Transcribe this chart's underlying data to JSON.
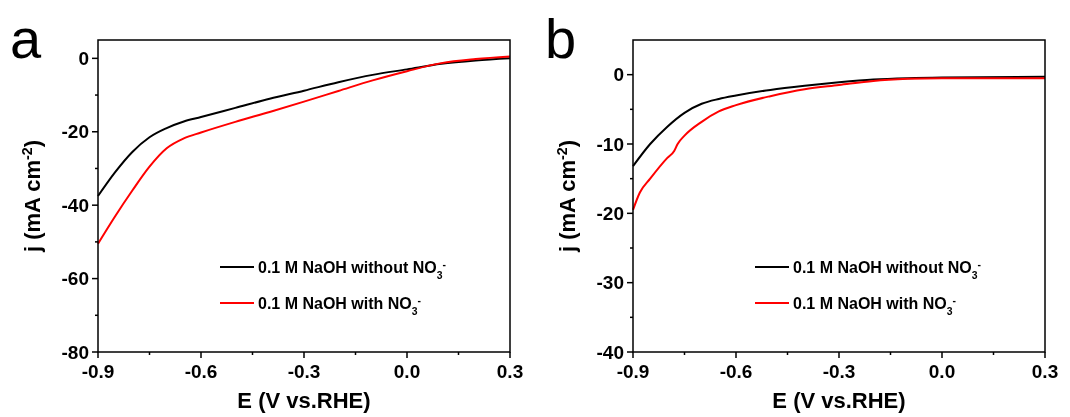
{
  "chart_data": [
    {
      "type": "line",
      "title": "a",
      "xlabel": "E (V vs.RHE)",
      "ylabel": "j (mA cm$^{-2}$)",
      "xlim": [
        -0.9,
        0.3
      ],
      "ylim": [
        -80,
        5
      ],
      "xticks": [
        -0.9,
        {
          "value": -0.75,
          "label": null
        },
        -0.6,
        {
          "value": -0.45,
          "label": null
        },
        -0.3,
        {
          "value": -0.15,
          "label": null
        },
        {
          "value": 0,
          "label": "0.0"
        },
        {
          "value": 0.15,
          "label": null
        },
        0.3
      ],
      "yticks": [
        -80,
        {
          "value": -70,
          "label": null
        },
        -60,
        {
          "value": -50,
          "label": null
        },
        -40,
        {
          "value": -30,
          "label": null
        },
        -20,
        {
          "value": -10,
          "label": null
        },
        0
      ],
      "grid": false,
      "legend": "bottom right",
      "marker": "none",
      "line_style": "solid",
      "series": [
        {
          "name": "0.1 M NaOH without NO$_{3}$$^{-}$",
          "color": "#000000",
          "x": [
            -0.9,
            -0.85,
            -0.8,
            -0.75,
            -0.7,
            -0.65,
            -0.6,
            -0.5,
            -0.4,
            -0.3,
            -0.2,
            -0.1,
            0,
            0.1,
            0.2,
            0.3
          ],
          "values": [
            -37.5,
            -31,
            -25.5,
            -21.5,
            -19,
            -17.2,
            -16,
            -13.5,
            -11,
            -8.8,
            -6.5,
            -4.5,
            -3,
            -1.5,
            -0.6,
            0
          ]
        },
        {
          "name": "0.1 M NaOH with NO$_{3}$$^{-}$",
          "color": "#ff0000",
          "x": [
            -0.9,
            -0.85,
            -0.8,
            -0.75,
            -0.7,
            -0.65,
            -0.6,
            -0.5,
            -0.4,
            -0.3,
            -0.2,
            -0.1,
            0,
            0.1,
            0.2,
            0.3
          ],
          "values": [
            -50.5,
            -43,
            -36,
            -29.5,
            -24.5,
            -21.8,
            -20.2,
            -17.3,
            -14.6,
            -11.8,
            -8.9,
            -6,
            -3.5,
            -1.3,
            -0.2,
            0.5
          ]
        }
      ]
    },
    {
      "type": "line",
      "title": "b",
      "xlabel": "E (V vs.RHE)",
      "ylabel": "j (mA cm$^{-2}$)",
      "xlim": [
        -0.9,
        0.3
      ],
      "ylim": [
        -40,
        5
      ],
      "xticks": [
        -0.9,
        {
          "value": -0.75,
          "label": null
        },
        -0.6,
        {
          "value": -0.45,
          "label": null
        },
        -0.3,
        {
          "value": -0.15,
          "label": null
        },
        {
          "value": 0,
          "label": "0.0"
        },
        {
          "value": 0.15,
          "label": null
        },
        0.3
      ],
      "yticks": [
        -40,
        {
          "value": -35,
          "label": null
        },
        -30,
        {
          "value": -25,
          "label": null
        },
        -20,
        {
          "value": -15,
          "label": null
        },
        -10,
        {
          "value": -5,
          "label": null
        },
        0
      ],
      "grid": false,
      "legend": "bottom right",
      "marker": "none",
      "line_style": "solid",
      "series": [
        {
          "name": "0.1 M NaOH without NO$_{3}$$^{-}$",
          "color": "#000000",
          "x": [
            -0.9,
            -0.85,
            -0.8,
            -0.75,
            -0.7,
            -0.65,
            -0.6,
            -0.5,
            -0.4,
            -0.3,
            -0.2,
            -0.1,
            0,
            0.3
          ],
          "values": [
            -13.2,
            -10,
            -7.5,
            -5.5,
            -4.2,
            -3.5,
            -3,
            -2.2,
            -1.6,
            -1.1,
            -0.7,
            -0.5,
            -0.4,
            -0.3
          ]
        },
        {
          "name": "0.1 M NaOH with NO$_{3}$$^{-}$",
          "color": "#ff0000",
          "x": [
            -0.9,
            -0.88,
            -0.85,
            -0.8,
            -0.78,
            -0.77,
            -0.75,
            -0.7,
            -0.65,
            -0.6,
            -0.5,
            -0.4,
            -0.3,
            -0.2,
            -0.1,
            0,
            0.3
          ],
          "values": [
            -19.5,
            -17,
            -15,
            -12,
            -11,
            -10,
            -8.8,
            -6.8,
            -5.3,
            -4.4,
            -3.1,
            -2.1,
            -1.5,
            -0.9,
            -0.6,
            -0.5,
            -0.5
          ]
        }
      ]
    }
  ]
}
